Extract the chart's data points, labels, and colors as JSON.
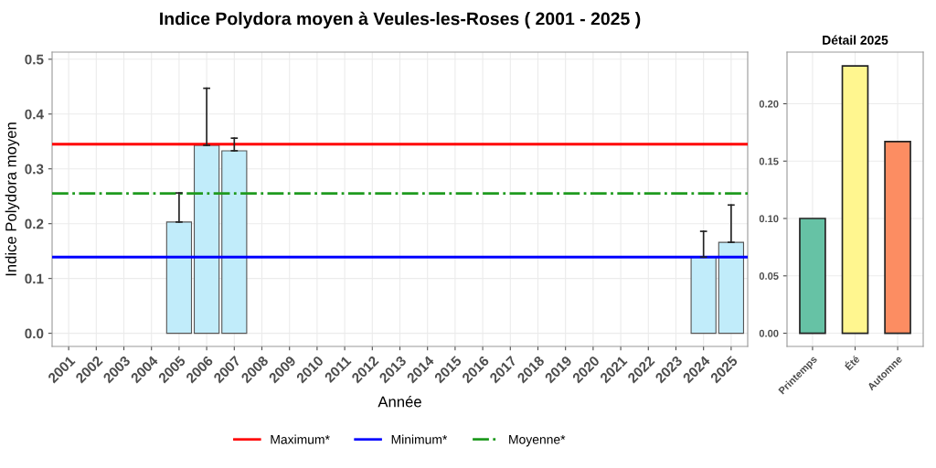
{
  "chart_data": [
    {
      "type": "bar",
      "title": "Indice Polydora moyen à Veules-les-Roses ( 2001 - 2025 )",
      "xlabel": "Année",
      "ylabel": "Indice Polydora moyen",
      "categories": [
        "2001",
        "2002",
        "2003",
        "2004",
        "2005",
        "2006",
        "2007",
        "2008",
        "2009",
        "2010",
        "2011",
        "2012",
        "2013",
        "2014",
        "2015",
        "2016",
        "2017",
        "2018",
        "2019",
        "2020",
        "2021",
        "2022",
        "2023",
        "2024",
        "2025"
      ],
      "series": [
        {
          "color": "#c1ecfa",
          "values": [
            null,
            null,
            null,
            null,
            0.203,
            0.343,
            0.333,
            null,
            null,
            null,
            null,
            null,
            null,
            null,
            null,
            null,
            null,
            null,
            null,
            null,
            null,
            null,
            null,
            0.139,
            0.166
          ],
          "errors": [
            null,
            null,
            null,
            null,
            [
              0.203,
              0.256
            ],
            [
              0.343,
              0.447
            ],
            [
              0.333,
              0.356
            ],
            null,
            null,
            null,
            null,
            null,
            null,
            null,
            null,
            null,
            null,
            null,
            null,
            null,
            null,
            null,
            null,
            [
              0.139,
              0.186
            ],
            [
              0.166,
              0.234
            ]
          ]
        }
      ],
      "ylim": [
        -0.024,
        0.513
      ],
      "yticks": [
        {
          "value": 0,
          "label": "0.0"
        },
        0.1,
        0.2,
        0.3,
        0.4,
        0.5
      ],
      "ref_lines": [
        {
          "axis": "y",
          "value": 0.345,
          "label": "Maximum*",
          "color": "#ff0000",
          "line_style": "solid"
        },
        {
          "axis": "y",
          "value": 0.139,
          "label": "Minimum*",
          "color": "#0000ff",
          "line_style": "solid"
        },
        {
          "axis": "y",
          "value": 0.255,
          "label": "Moyenne*",
          "color": "#1f9a1f",
          "line_style": "dashdot"
        }
      ],
      "grid": true,
      "legend": "bottom"
    },
    {
      "type": "bar",
      "title": "Détail 2025",
      "categories": [
        "Printemps",
        "Été",
        "Automne"
      ],
      "values": [
        0.1,
        0.233,
        0.167
      ],
      "colors": [
        "#66c2a5",
        "#fff68f",
        "#fc8d62"
      ],
      "ylim": [
        -0.0115,
        0.245
      ],
      "yticks": [
        {
          "value": 0,
          "label": "0.00"
        },
        {
          "value": 0.05,
          "label": "0.05"
        },
        {
          "value": 0.1,
          "label": "0.10"
        },
        {
          "value": 0.15,
          "label": "0.15"
        },
        {
          "value": 0.2,
          "label": "0.20"
        }
      ],
      "grid": true
    }
  ]
}
